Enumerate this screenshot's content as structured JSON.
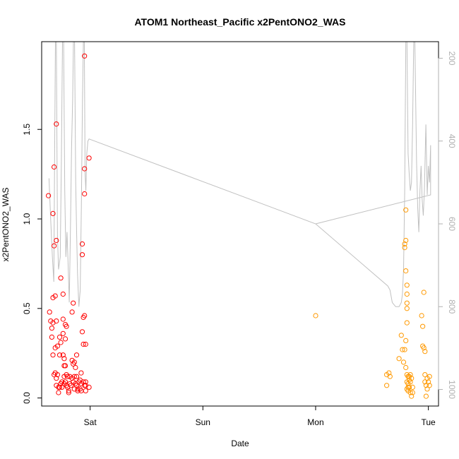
{
  "chart_data": {
    "type": "scatter",
    "title": "ATOM1 Northeast_Pacific x2PentONO2_WAS",
    "xlabel": "Date",
    "ylabel": "x2PentONO2_WAS",
    "x_ticks": [
      {
        "value": 1.0,
        "label": "Sat"
      },
      {
        "value": 2.0,
        "label": "Sun"
      },
      {
        "value": 3.0,
        "label": "Mon"
      },
      {
        "value": 4.0,
        "label": "Tue"
      }
    ],
    "y_ticks": [
      0.0,
      0.5,
      1.0,
      1.5
    ],
    "xlim": [
      0.57,
      4.09
    ],
    "ylim": [
      -0.045,
      1.99
    ],
    "right_axis": {
      "ticks": [
        200,
        400,
        600,
        800,
        1000
      ],
      "lim": [
        1040,
        160
      ],
      "color": "#b0b0b0"
    },
    "colors": {
      "series1": "#ff0000",
      "series2": "#ff9900",
      "line": "#c0c0c0"
    },
    "series": [
      {
        "color": "#ff0000",
        "points": [
          [
            0.63,
            1.13
          ],
          [
            0.64,
            0.48
          ],
          [
            0.65,
            0.43
          ],
          [
            0.66,
            0.39
          ],
          [
            0.66,
            0.34
          ],
          [
            0.67,
            0.56
          ],
          [
            0.67,
            0.42
          ],
          [
            0.67,
            0.24
          ],
          [
            0.67,
            1.03
          ],
          [
            0.68,
            1.29
          ],
          [
            0.68,
            0.85
          ],
          [
            0.68,
            0.13
          ],
          [
            0.69,
            0.57
          ],
          [
            0.69,
            0.28
          ],
          [
            0.69,
            0.14
          ],
          [
            0.7,
            1.53
          ],
          [
            0.7,
            0.88
          ],
          [
            0.7,
            0.43
          ],
          [
            0.7,
            0.11
          ],
          [
            0.7,
            0.07
          ],
          [
            0.71,
            0.29
          ],
          [
            0.71,
            0.13
          ],
          [
            0.72,
            0.06
          ],
          [
            0.72,
            0.03
          ],
          [
            0.73,
            0.34
          ],
          [
            0.73,
            0.24
          ],
          [
            0.73,
            0.06
          ],
          [
            0.74,
            0.67
          ],
          [
            0.74,
            0.31
          ],
          [
            0.74,
            0.08
          ],
          [
            0.75,
            0.09
          ],
          [
            0.75,
            0.06
          ],
          [
            0.76,
            0.58
          ],
          [
            0.76,
            0.44
          ],
          [
            0.76,
            0.36
          ],
          [
            0.76,
            0.24
          ],
          [
            0.77,
            0.22
          ],
          [
            0.77,
            0.18
          ],
          [
            0.77,
            0.12
          ],
          [
            0.77,
            0.08
          ],
          [
            0.78,
            0.41
          ],
          [
            0.78,
            0.33
          ],
          [
            0.78,
            0.18
          ],
          [
            0.78,
            0.09
          ],
          [
            0.79,
            0.4
          ],
          [
            0.79,
            0.13
          ],
          [
            0.79,
            0.07
          ],
          [
            0.8,
            0.12
          ],
          [
            0.8,
            0.06
          ],
          [
            0.81,
            0.04
          ],
          [
            0.81,
            0.03
          ],
          [
            0.82,
            0.12
          ],
          [
            0.82,
            0.08
          ],
          [
            0.83,
            0.07
          ],
          [
            0.84,
            0.48
          ],
          [
            0.84,
            0.21
          ],
          [
            0.84,
            0.11
          ],
          [
            0.85,
            0.53
          ],
          [
            0.85,
            0.19
          ],
          [
            0.85,
            0.09
          ],
          [
            0.86,
            0.2
          ],
          [
            0.86,
            0.12
          ],
          [
            0.86,
            0.05
          ],
          [
            0.87,
            0.17
          ],
          [
            0.87,
            0.08
          ],
          [
            0.88,
            0.24
          ],
          [
            0.88,
            0.12
          ],
          [
            0.88,
            0.07
          ],
          [
            0.89,
            0.05
          ],
          [
            0.89,
            0.04
          ],
          [
            0.9,
            0.09
          ],
          [
            0.91,
            0.1
          ],
          [
            0.91,
            0.05
          ],
          [
            0.92,
            0.14
          ],
          [
            0.92,
            0.08
          ],
          [
            0.92,
            0.04
          ],
          [
            0.93,
            0.86
          ],
          [
            0.93,
            0.8
          ],
          [
            0.93,
            0.37
          ],
          [
            0.94,
            0.45
          ],
          [
            0.94,
            0.3
          ],
          [
            0.94,
            0.09
          ],
          [
            0.95,
            1.91
          ],
          [
            0.95,
            1.28
          ],
          [
            0.95,
            1.14
          ],
          [
            0.95,
            0.46
          ],
          [
            0.95,
            0.07
          ],
          [
            0.96,
            0.09
          ],
          [
            0.96,
            0.07
          ],
          [
            0.96,
            0.04
          ],
          [
            0.96,
            0.3
          ],
          [
            0.99,
            1.34
          ],
          [
            0.99,
            0.06
          ]
        ]
      },
      {
        "color": "#ff9900",
        "points": [
          [
            3.0,
            0.46
          ],
          [
            3.63,
            0.13
          ],
          [
            3.63,
            0.07
          ],
          [
            3.65,
            0.14
          ],
          [
            3.66,
            0.12
          ],
          [
            3.74,
            0.22
          ],
          [
            3.76,
            0.35
          ],
          [
            3.77,
            0.27
          ],
          [
            3.78,
            0.2
          ],
          [
            3.79,
            0.27
          ],
          [
            3.8,
            0.32
          ],
          [
            3.8,
            0.17
          ],
          [
            3.81,
            0.13
          ],
          [
            3.81,
            0.09
          ],
          [
            3.81,
            0.05
          ],
          [
            3.82,
            0.06
          ],
          [
            3.79,
            0.86
          ],
          [
            3.79,
            0.84
          ],
          [
            3.8,
            0.88
          ],
          [
            3.8,
            0.71
          ],
          [
            3.8,
            1.05
          ],
          [
            3.81,
            0.63
          ],
          [
            3.81,
            0.58
          ],
          [
            3.81,
            0.53
          ],
          [
            3.81,
            0.5
          ],
          [
            3.81,
            0.42
          ],
          [
            3.82,
            0.12
          ],
          [
            3.82,
            0.08
          ],
          [
            3.82,
            0.04
          ],
          [
            3.83,
            0.12
          ],
          [
            3.83,
            0.1
          ],
          [
            3.83,
            0.06
          ],
          [
            3.84,
            0.13
          ],
          [
            3.84,
            0.09
          ],
          [
            3.84,
            0.03
          ],
          [
            3.85,
            0.01
          ],
          [
            3.85,
            0.11
          ],
          [
            3.86,
            0.06
          ],
          [
            3.86,
            0.03
          ],
          [
            3.94,
            0.46
          ],
          [
            3.95,
            0.4
          ],
          [
            3.95,
            0.29
          ],
          [
            3.96,
            0.28
          ],
          [
            3.97,
            0.26
          ],
          [
            3.96,
            0.59
          ],
          [
            3.97,
            0.13
          ],
          [
            3.97,
            0.09
          ],
          [
            3.98,
            0.07
          ],
          [
            3.98,
            0.01
          ],
          [
            3.99,
            0.11
          ],
          [
            3.99,
            0.05
          ],
          [
            4.0,
            0.09
          ],
          [
            4.01,
            0.12
          ],
          [
            4.01,
            0.07
          ]
        ]
      }
    ],
    "line": {
      "color": "#c0c0c0",
      "points": [
        [
          0.635,
          490
        ],
        [
          0.65,
          590
        ],
        [
          0.665,
          680
        ],
        [
          0.678,
          740
        ],
        [
          0.685,
          430
        ],
        [
          0.692,
          160
        ],
        [
          0.7,
          160
        ],
        [
          0.71,
          630
        ],
        [
          0.72,
          710
        ],
        [
          0.735,
          680
        ],
        [
          0.745,
          450
        ],
        [
          0.755,
          160
        ],
        [
          0.765,
          160
        ],
        [
          0.775,
          520
        ],
        [
          0.785,
          680
        ],
        [
          0.795,
          620
        ],
        [
          0.805,
          700
        ],
        [
          0.815,
          790
        ],
        [
          0.825,
          620
        ],
        [
          0.835,
          420
        ],
        [
          0.845,
          300
        ],
        [
          0.852,
          160
        ],
        [
          0.862,
          160
        ],
        [
          0.872,
          500
        ],
        [
          0.88,
          620
        ],
        [
          0.888,
          720
        ],
        [
          0.9,
          800
        ],
        [
          0.912,
          760
        ],
        [
          0.922,
          560
        ],
        [
          0.932,
          300
        ],
        [
          0.94,
          160
        ],
        [
          0.948,
          160
        ],
        [
          0.955,
          480
        ],
        [
          0.962,
          520
        ],
        [
          0.97,
          430
        ],
        [
          0.98,
          400
        ],
        [
          0.99,
          395
        ],
        [
          3.0,
          600
        ],
        [
          3.64,
          750
        ],
        [
          3.66,
          760
        ],
        [
          3.68,
          790
        ],
        [
          3.71,
          800
        ],
        [
          3.74,
          800
        ],
        [
          3.76,
          790
        ],
        [
          3.77,
          770
        ],
        [
          3.78,
          710
        ],
        [
          3.79,
          520
        ],
        [
          3.8,
          160
        ],
        [
          3.81,
          160
        ],
        [
          3.82,
          430
        ],
        [
          3.83,
          480
        ],
        [
          3.84,
          520
        ],
        [
          3.85,
          500
        ],
        [
          3.86,
          360
        ],
        [
          3.87,
          160
        ],
        [
          3.88,
          160
        ],
        [
          3.895,
          450
        ],
        [
          3.905,
          560
        ],
        [
          3.915,
          620
        ],
        [
          3.925,
          520
        ],
        [
          3.935,
          460
        ],
        [
          3.945,
          540
        ],
        [
          3.955,
          580
        ],
        [
          3.965,
          520
        ],
        [
          3.978,
          360
        ],
        [
          3.99,
          530
        ],
        [
          4.0,
          460
        ],
        [
          4.01,
          500
        ],
        [
          4.02,
          410
        ],
        [
          4.02,
          530
        ],
        [
          3.0,
          600
        ]
      ]
    }
  }
}
